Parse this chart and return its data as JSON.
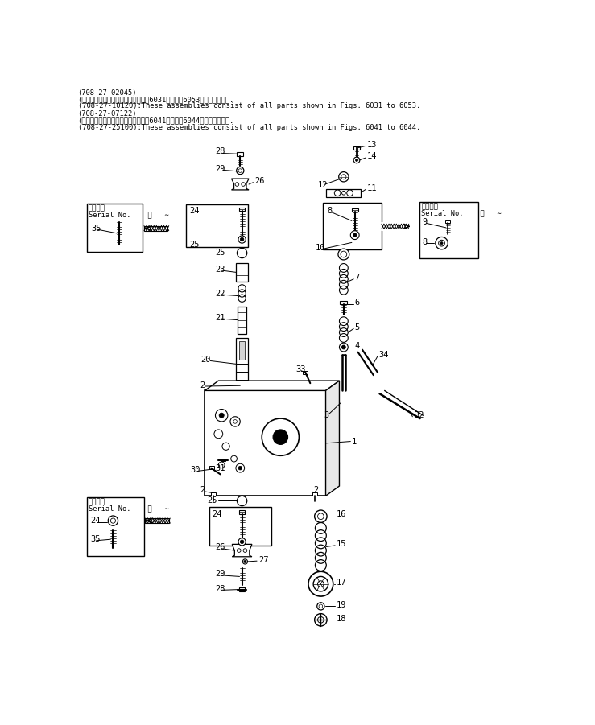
{
  "bg_color": "#ffffff",
  "fig_width": 7.39,
  "fig_height": 9.01,
  "dpi": 100,
  "header": [
    "(708-27-02045)",
    "(これらのアセンブリの構成部品は第6031図から第6053図まで含みます.",
    "(708-27-10120):These assemblies consist of all parts shown in Figs. 6031 to 6053.",
    "(708-27-07122)",
    "(これらのアセンブリの構成部品は第6041図から第6044図まで含みます.",
    "(708-27-25100):These assemblies consist of all parts shown in Figs. 6041 to 6044."
  ]
}
